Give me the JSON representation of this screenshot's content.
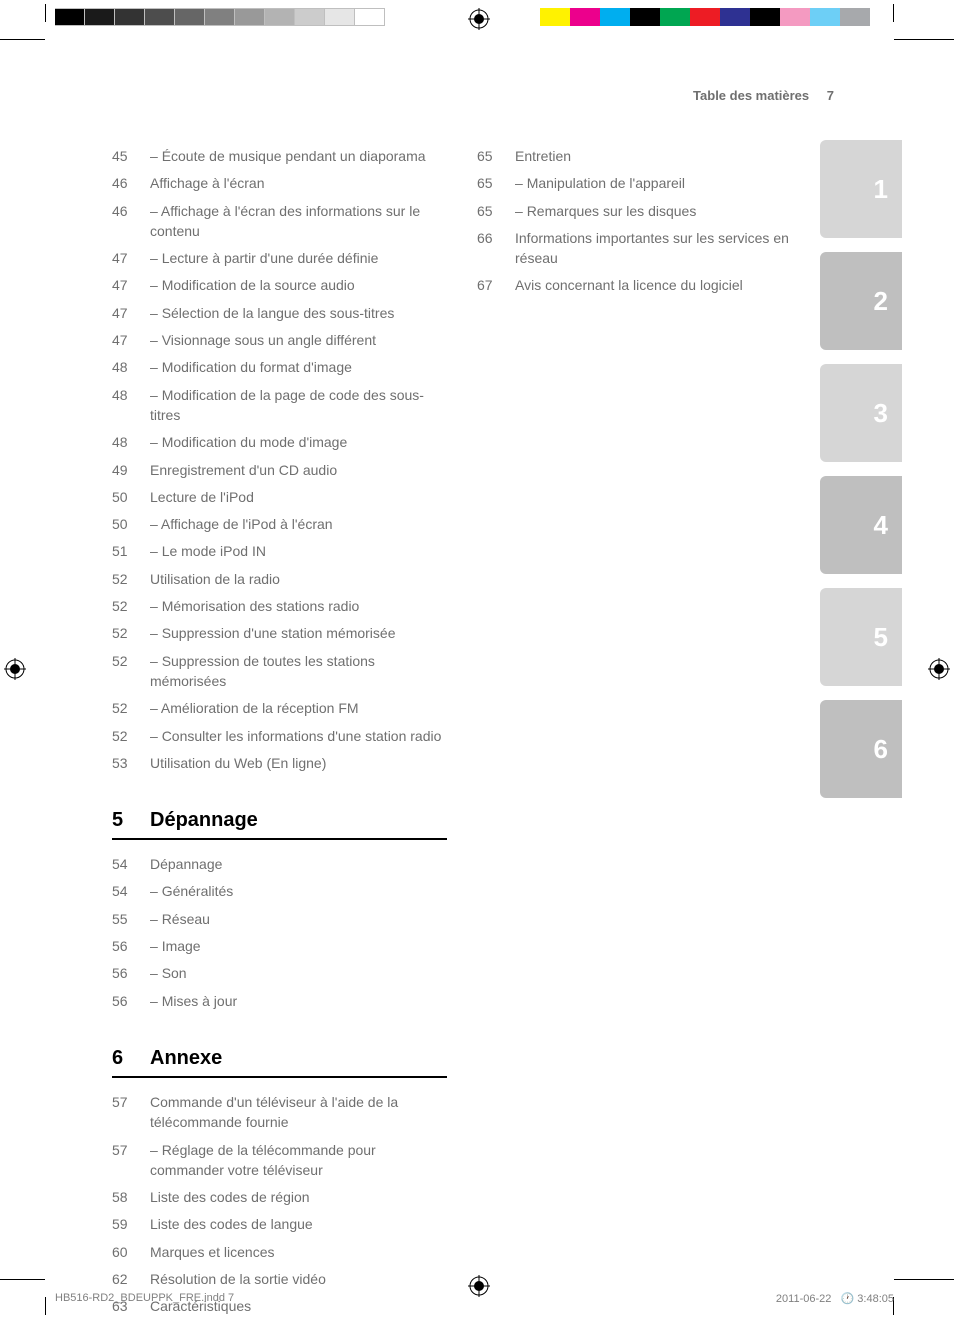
{
  "header": {
    "title": "Table des matières",
    "page_number": "7"
  },
  "graybar_colors": [
    "#000000",
    "#1a1a1a",
    "#333333",
    "#4d4d4d",
    "#666666",
    "#808080",
    "#999999",
    "#b3b3b3",
    "#cccccc",
    "#e6e6e6",
    "#ffffff"
  ],
  "graybar_border": "#bfbfbf",
  "colorbar_colors": [
    "#fff200",
    "#ec008c",
    "#00aeef",
    "#000000",
    "#00a651",
    "#ed1c24",
    "#2e3192",
    "#000000",
    "#f49ac1",
    "#6dcff6",
    "#a7a9ac"
  ],
  "side_tabs": [
    "1",
    "2",
    "3",
    "4",
    "5",
    "6"
  ],
  "tab_bg_light": "#d6d6d6",
  "tab_bg_dark": "#bfbfbf",
  "tab_text_color": "#ffffff",
  "left_col": {
    "items1": [
      {
        "page": "45",
        "text": "Écoute de musique pendant un diaporama",
        "sub": true
      },
      {
        "page": "46",
        "text": "Affichage à l'écran",
        "sub": false
      },
      {
        "page": "46",
        "text": "Affichage à l'écran des informations sur le contenu",
        "sub": true
      },
      {
        "page": "47",
        "text": "Lecture à partir d'une durée définie",
        "sub": true
      },
      {
        "page": "47",
        "text": "Modification de la source audio",
        "sub": true
      },
      {
        "page": "47",
        "text": "Sélection de la langue des sous-titres",
        "sub": true
      },
      {
        "page": "47",
        "text": "Visionnage sous un angle différent",
        "sub": true
      },
      {
        "page": "48",
        "text": "Modification du format d'image",
        "sub": true
      },
      {
        "page": "48",
        "text": "Modification de la page de code des sous-titres",
        "sub": true
      },
      {
        "page": "48",
        "text": "Modification du mode d'image",
        "sub": true
      },
      {
        "page": "49",
        "text": "Enregistrement d'un CD audio",
        "sub": false
      },
      {
        "page": "50",
        "text": "Lecture de l'iPod",
        "sub": false
      },
      {
        "page": "50",
        "text": "Affichage de l'iPod à l'écran",
        "sub": true
      },
      {
        "page": "51",
        "text": "Le mode iPod IN",
        "sub": true
      },
      {
        "page": "52",
        "text": "Utilisation de la radio",
        "sub": false
      },
      {
        "page": "52",
        "text": "Mémorisation des stations radio",
        "sub": true
      },
      {
        "page": "52",
        "text": "Suppression d'une station mémorisée",
        "sub": true
      },
      {
        "page": "52",
        "text": "Suppression de toutes les stations mémorisées",
        "sub": true
      },
      {
        "page": "52",
        "text": "Amélioration de la réception FM",
        "sub": true
      },
      {
        "page": "52",
        "text": "Consulter les informations d'une station radio",
        "sub": true
      },
      {
        "page": "53",
        "text": "Utilisation du Web (En ligne)",
        "sub": false
      }
    ],
    "section5": {
      "num": "5",
      "title": "Dépannage"
    },
    "items5": [
      {
        "page": "54",
        "text": "Dépannage",
        "sub": false
      },
      {
        "page": "54",
        "text": "Généralités",
        "sub": true
      },
      {
        "page": "55",
        "text": "Réseau",
        "sub": true
      },
      {
        "page": "56",
        "text": "Image",
        "sub": true
      },
      {
        "page": "56",
        "text": "Son",
        "sub": true
      },
      {
        "page": "56",
        "text": "Mises à jour",
        "sub": true
      }
    ],
    "section6": {
      "num": "6",
      "title": "Annexe"
    },
    "items6": [
      {
        "page": "57",
        "text": "Commande d'un téléviseur à l'aide de la télécommande fournie",
        "sub": false
      },
      {
        "page": "57",
        "text": "Réglage de la télécommande pour commander votre téléviseur",
        "sub": true
      },
      {
        "page": "58",
        "text": "Liste des codes de région",
        "sub": false
      },
      {
        "page": "59",
        "text": "Liste des codes de langue",
        "sub": false
      },
      {
        "page": "60",
        "text": "Marques et licences",
        "sub": false
      },
      {
        "page": "62",
        "text": "Résolution de la sortie vidéo",
        "sub": false
      },
      {
        "page": "63",
        "text": "Caractéristiques",
        "sub": false
      }
    ]
  },
  "right_col": {
    "items": [
      {
        "page": "65",
        "text": "Entretien",
        "sub": false
      },
      {
        "page": "65",
        "text": "Manipulation de l'appareil",
        "sub": true
      },
      {
        "page": "65",
        "text": "Remarques sur les disques",
        "sub": true
      },
      {
        "page": "66",
        "text": "Informations importantes sur les services en réseau",
        "sub": false
      },
      {
        "page": "67",
        "text": "Avis concernant la licence du logiciel",
        "sub": false
      }
    ]
  },
  "footer": {
    "left": "HB516-RD2_BDEUPPK_FRE.indd   7",
    "date": "2011-06-22",
    "time": "3:48:05"
  }
}
